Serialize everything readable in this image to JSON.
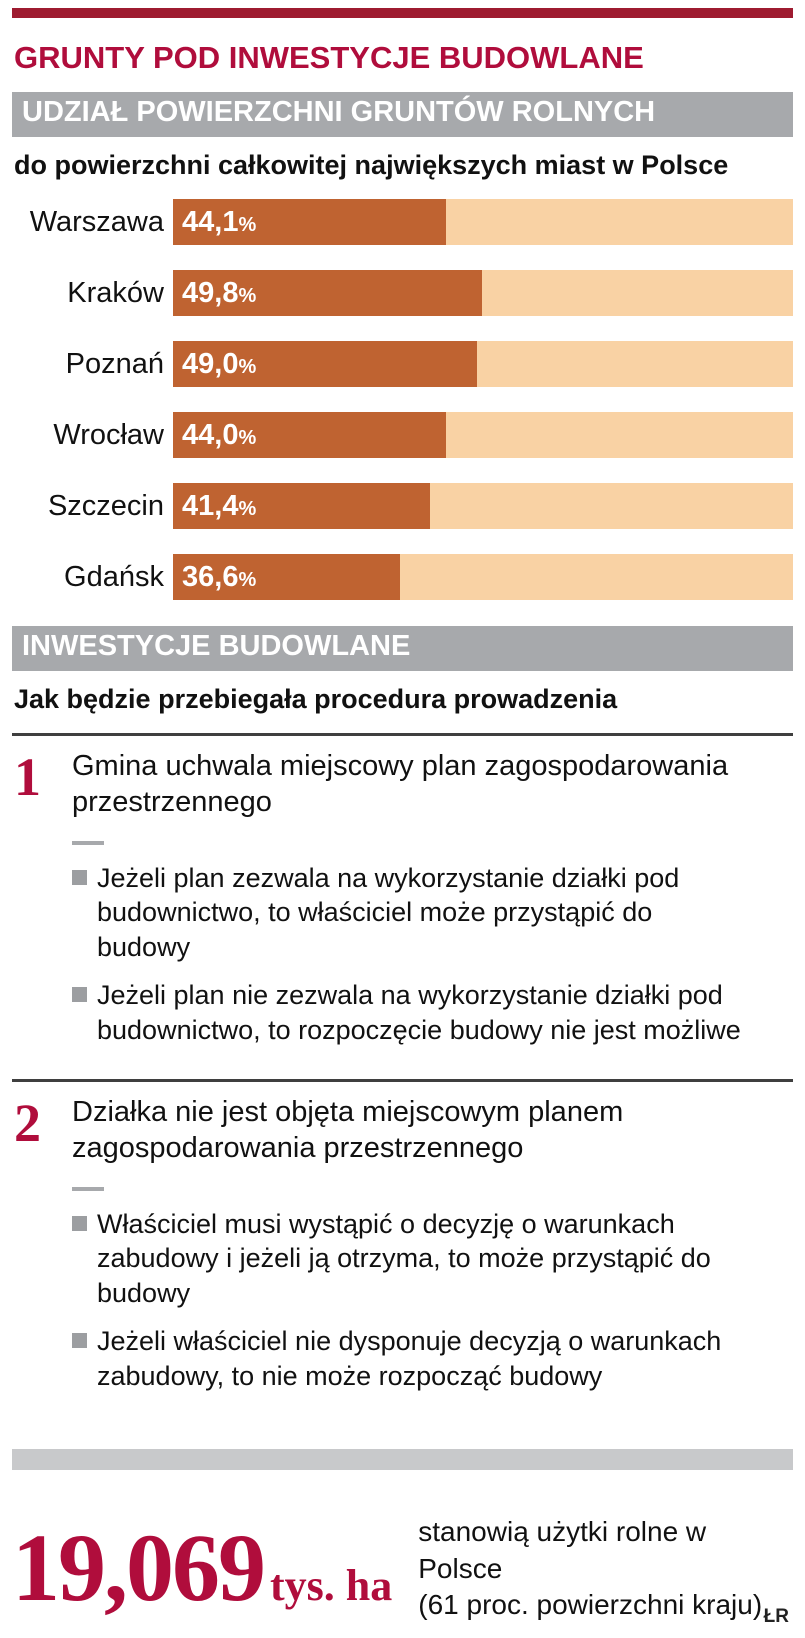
{
  "page": {
    "title": "GRUNTY POD INWESTYCJE BUDOWLANE",
    "credit": "ŁR"
  },
  "colors": {
    "accent_crimson": "#b00d3c",
    "top_bar_maroon": "#9e1b30",
    "header_gray": "#a7a9ac",
    "bar_fill": "#bf6331",
    "bar_track": "#f9d2a4",
    "bullet_gray": "#9c9ea1",
    "footer_bar_gray": "#c8c9cb"
  },
  "chart_data": {
    "type": "bar",
    "orientation": "horizontal",
    "title": "UDZIAŁ POWIERZCHNI GRUNTÓW ROLNYCH",
    "subtitle": "do powierzchni całkowitej największych miast w Polsce",
    "categories": [
      "Warszawa",
      "Kraków",
      "Poznań",
      "Wrocław",
      "Szczecin",
      "Gdańsk"
    ],
    "values": [
      44.1,
      49.8,
      49.0,
      44.0,
      41.4,
      36.6
    ],
    "value_labels": [
      "44,1",
      "49,8",
      "49,0",
      "44,0",
      "41,4",
      "36,6"
    ],
    "unit": "%",
    "xlim": [
      0,
      100
    ],
    "grid": false,
    "legend": false,
    "value_label_position": "inside-left"
  },
  "procedure": {
    "header": "INWESTYCJE BUDOWLANE",
    "subtitle": "Jak będzie przebiegała procedura prowadzenia",
    "steps": [
      {
        "number": "1",
        "title": "Gmina uchwala miejscowy plan zagospodarowania przestrzennego",
        "bullets": [
          "Jeżeli plan zezwala na wykorzystanie działki pod budownictwo, to właściciel może przystąpić do budowy",
          "Jeżeli plan nie zezwala na wykorzystanie działki pod budownictwo, to rozpoczęcie budowy nie jest możliwe"
        ]
      },
      {
        "number": "2",
        "title": "Działka nie jest objęta miejscowym planem zagospodarowania przestrzennego",
        "bullets": [
          "Właściciel musi wystąpić o decyzję o warunkach zabudowy i jeżeli ją otrzyma, to może przystąpić do budowy",
          "Jeżeli właściciel nie dysponuje decyzją o warunkach zabudowy, to nie może rozpocząć budowy"
        ]
      }
    ]
  },
  "footer": {
    "big_number": "19,069",
    "big_number_unit": "tys. ha",
    "description_line1": "stanowią użytki rolne w Polsce",
    "description_line2": "(61 proc. powierzchni kraju)"
  }
}
